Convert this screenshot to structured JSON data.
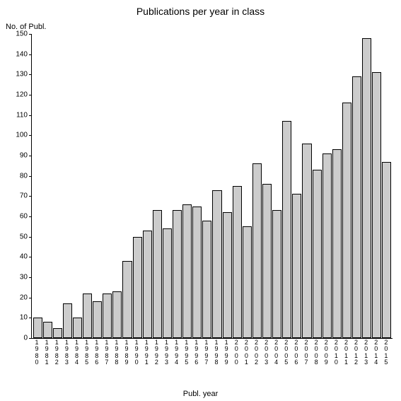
{
  "chart": {
    "type": "bar",
    "title": "Publications per year in class",
    "title_fontsize": 14,
    "y_axis_label": "No. of Publ.",
    "x_axis_label": "Publ. year",
    "label_fontsize": 11,
    "tick_fontsize": 10,
    "background_color": "#ffffff",
    "bar_fill_color": "#cccccc",
    "bar_border_color": "#000000",
    "axis_color": "#000000",
    "ylim": [
      0,
      150
    ],
    "ytick_step": 10,
    "yticks": [
      0,
      10,
      20,
      30,
      40,
      50,
      60,
      70,
      80,
      90,
      100,
      110,
      120,
      130,
      140,
      150
    ],
    "categories": [
      "1980",
      "1981",
      "1982",
      "1983",
      "1984",
      "1985",
      "1986",
      "1987",
      "1988",
      "1989",
      "1990",
      "1991",
      "1992",
      "1993",
      "1994",
      "1995",
      "1996",
      "1997",
      "1998",
      "1999",
      "2000",
      "2001",
      "2002",
      "2003",
      "2004",
      "2005",
      "2006",
      "2007",
      "2008",
      "2009",
      "2010",
      "2011",
      "2012",
      "2013",
      "2014",
      "2015"
    ],
    "values": [
      10,
      8,
      5,
      17,
      10,
      22,
      18,
      22,
      23,
      38,
      50,
      53,
      63,
      54,
      63,
      66,
      65,
      58,
      73,
      62,
      75,
      55,
      86,
      76,
      63,
      107,
      71,
      96,
      83,
      91,
      93,
      116,
      129,
      148,
      131,
      87
    ],
    "bar_width_ratio": 0.9
  }
}
